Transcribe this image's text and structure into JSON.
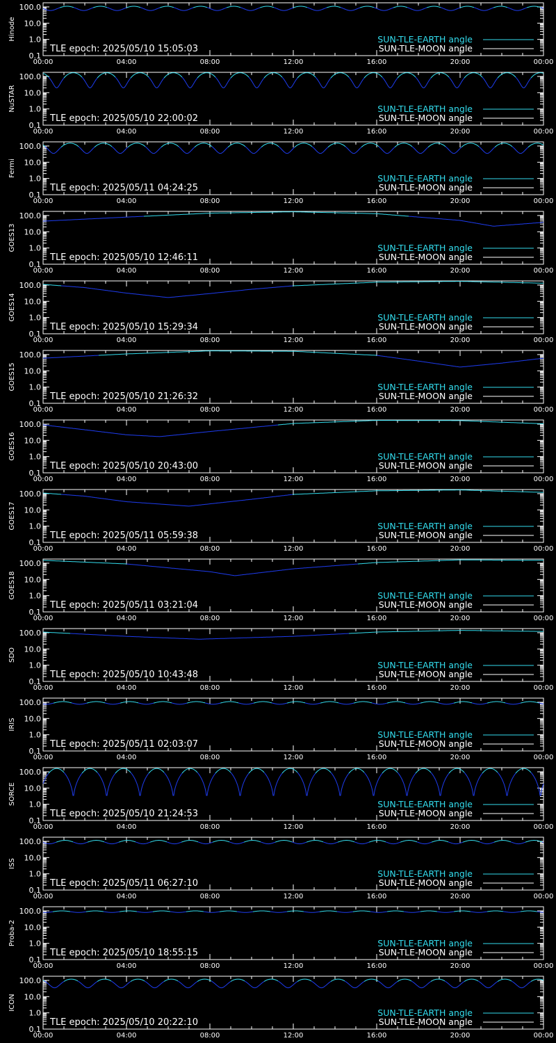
{
  "colors": {
    "background": "#000000",
    "axis": "#ffffff",
    "earth_above": "#33ddee",
    "earth_below": "#1e3cf0",
    "moon": "#ffffff"
  },
  "chart_data": [
    {
      "type": "line",
      "satellite": "Hinode",
      "tle_epoch_label": "TLE epoch: 2025/05/10 15:05:03",
      "profile": {
        "kind": "periodic",
        "period_h": 1.6,
        "phase_h": 0.35,
        "min": 60,
        "max": 110,
        "shape": "cos"
      }
    },
    {
      "type": "line",
      "satellite": "NuSTAR",
      "tle_epoch_label": "TLE epoch: 2025/05/10 22:00:02",
      "profile": {
        "kind": "periodic",
        "period_h": 1.6,
        "phase_h": 0.65,
        "min": 20,
        "max": 170,
        "shape": "cos"
      }
    },
    {
      "type": "line",
      "satellite": "Fermi",
      "tle_epoch_label": "TLE epoch: 2025/05/11 04:24:25",
      "profile": {
        "kind": "periodic",
        "period_h": 1.6,
        "phase_h": 0.5,
        "min": 35,
        "max": 150,
        "shape": "cos"
      }
    },
    {
      "type": "line",
      "satellite": "GOES13",
      "tle_epoch_label": "TLE epoch: 2025/05/10 12:46:11",
      "profile": {
        "kind": "points",
        "x": [
          0,
          4,
          8,
          12,
          16,
          20,
          21.6,
          24
        ],
        "y": [
          45,
          80,
          140,
          170,
          130,
          50,
          22,
          38
        ]
      }
    },
    {
      "type": "line",
      "satellite": "GOES14",
      "tle_epoch_label": "TLE epoch: 2025/05/10 15:29:34",
      "profile": {
        "kind": "points",
        "x": [
          0,
          2,
          4,
          6,
          8,
          10,
          12,
          16,
          20,
          24
        ],
        "y": [
          110,
          70,
          32,
          17,
          30,
          55,
          90,
          150,
          170,
          130
        ]
      }
    },
    {
      "type": "line",
      "satellite": "GOES15",
      "tle_epoch_label": "TLE epoch: 2025/05/10 21:26:32",
      "profile": {
        "kind": "points",
        "x": [
          0,
          4,
          8,
          12,
          16,
          18,
          20,
          22,
          24
        ],
        "y": [
          60,
          110,
          170,
          160,
          90,
          40,
          17,
          30,
          60
        ]
      }
    },
    {
      "type": "line",
      "satellite": "GOES16",
      "tle_epoch_label": "TLE epoch: 2025/05/10 20:43:00",
      "profile": {
        "kind": "points",
        "x": [
          0,
          2,
          4,
          5.6,
          8,
          12,
          16,
          20,
          24
        ],
        "y": [
          90,
          45,
          22,
          17,
          35,
          110,
          170,
          165,
          105
        ]
      }
    },
    {
      "type": "line",
      "satellite": "GOES17",
      "tle_epoch_label": "TLE epoch: 2025/05/11 05:59:38",
      "profile": {
        "kind": "points",
        "x": [
          0,
          2,
          4,
          7,
          10,
          12,
          16,
          20,
          24
        ],
        "y": [
          110,
          70,
          32,
          17,
          45,
          90,
          150,
          170,
          120
        ]
      }
    },
    {
      "type": "line",
      "satellite": "GOES18",
      "tle_epoch_label": "TLE epoch: 2025/05/11 03:21:04",
      "profile": {
        "kind": "points",
        "x": [
          0,
          4,
          8,
          9.2,
          12,
          16,
          20,
          24
        ],
        "y": [
          150,
          90,
          30,
          17,
          45,
          110,
          160,
          150
        ]
      }
    },
    {
      "type": "line",
      "satellite": "SDO",
      "tle_epoch_label": "TLE epoch: 2025/05/10 10:43:48",
      "profile": {
        "kind": "points",
        "x": [
          0,
          4,
          7.5,
          12,
          16,
          20,
          24
        ],
        "y": [
          110,
          60,
          40,
          60,
          110,
          140,
          120
        ]
      }
    },
    {
      "type": "line",
      "satellite": "IRIS",
      "tle_epoch_label": "TLE epoch: 2025/05/11 02:03:07",
      "profile": {
        "kind": "periodic",
        "period_h": 1.6,
        "phase_h": 0.15,
        "min": 75,
        "max": 110,
        "shape": "cos"
      }
    },
    {
      "type": "line",
      "satellite": "SORCE",
      "tle_epoch_label": "TLE epoch: 2025/05/10 21:24:53",
      "profile": {
        "kind": "periodic",
        "period_h": 1.6,
        "phase_h": 1.45,
        "min": 1.5,
        "max": 160,
        "shape": "abs"
      }
    },
    {
      "type": "line",
      "satellite": "ISS",
      "tle_epoch_label": "TLE epoch: 2025/05/11 06:27:10",
      "profile": {
        "kind": "periodic",
        "period_h": 1.5,
        "phase_h": 0.3,
        "min": 70,
        "max": 115,
        "shape": "cos"
      }
    },
    {
      "type": "line",
      "satellite": "Proba-2",
      "tle_epoch_label": "TLE epoch: 2025/05/10 18:55:15",
      "profile": {
        "kind": "periodic",
        "period_h": 1.6,
        "phase_h": 0.1,
        "min": 80,
        "max": 100,
        "shape": "cos"
      }
    },
    {
      "type": "line",
      "satellite": "ICON",
      "tle_epoch_label": "TLE epoch: 2025/05/10 20:22:10",
      "profile": {
        "kind": "periodic",
        "period_h": 1.6,
        "phase_h": 0.55,
        "min": 35,
        "max": 120,
        "shape": "cos"
      }
    }
  ],
  "axes": {
    "x_ticks": [
      "00:00",
      "04:00",
      "08:00",
      "12:00",
      "16:00",
      "20:00",
      "00:00"
    ],
    "x_range_h": [
      0,
      24
    ],
    "y_ticks": [
      "100.0",
      "10.0",
      "1.0",
      "0.1"
    ],
    "y_range": [
      0.1,
      180
    ],
    "y_scale": "log"
  },
  "legend": {
    "earth_label": "SUN-TLE-EARTH angle",
    "moon_label": "SUN-TLE-MOON angle",
    "placement": "bottom-right"
  },
  "threshold_deg": 90
}
